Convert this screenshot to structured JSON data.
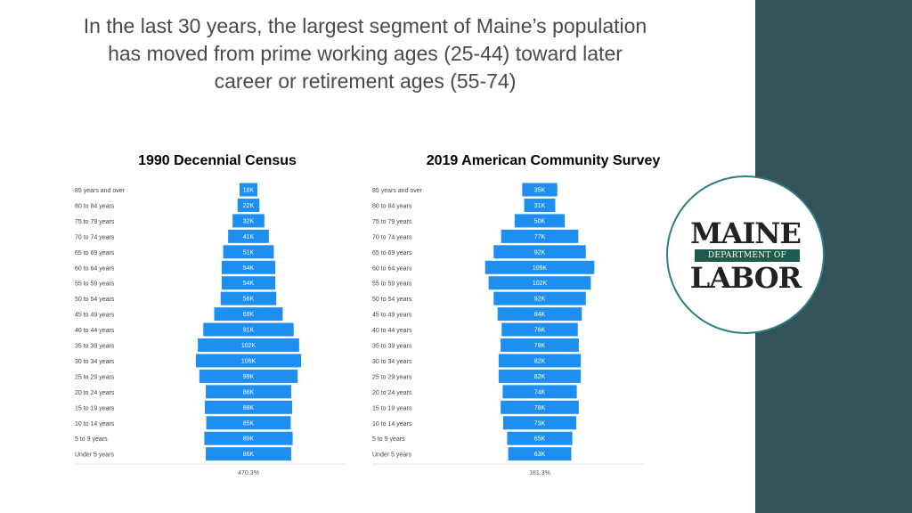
{
  "headline": {
    "line1": "In the last 30 years, the largest segment of Maine’s population",
    "line2": "has moved from prime working ages (25-44) toward later",
    "line3": "career or retirement ages (55-74)"
  },
  "logo": {
    "maine": "MAINE",
    "department": "DEPARTMENT OF",
    "labor": "LABOR"
  },
  "colors": {
    "bar": "#1e8ef0",
    "sidebar": "#33525a",
    "logo_ring": "#2f7d82",
    "logo_band": "#1e5a4d"
  },
  "chart_data": [
    {
      "type": "bar",
      "orientation": "horizontal-centered",
      "title": "1990 Decennial Census",
      "categories": [
        "85 years and over",
        "80 to 84 years",
        "75 to 79 years",
        "70 to 74 years",
        "65 to 69 years",
        "60 to 64 years",
        "55 to 59 years",
        "50 to 54 years",
        "45 to 49 years",
        "40 to 44 years",
        "35 to 39 years",
        "30 to 34 years",
        "25 to 29 years",
        "20 to 24 years",
        "15 to 19 years",
        "10 to 14 years",
        "5 to 9 years",
        "Under 5 years"
      ],
      "values": [
        18,
        22,
        32,
        41,
        51,
        54,
        54,
        56,
        69,
        91,
        102,
        106,
        99,
        86,
        88,
        85,
        89,
        86
      ],
      "value_labels": [
        "18K",
        "22K",
        "32K",
        "41K",
        "51K",
        "54K",
        "54K",
        "56K",
        "69K",
        "91K",
        "102K",
        "106K",
        "99K",
        "86K",
        "88K",
        "85K",
        "89K",
        "86K"
      ],
      "footer": "470.3%"
    },
    {
      "type": "bar",
      "orientation": "horizontal-centered",
      "title": "2019 American Community Survey",
      "categories": [
        "85 years and over",
        "80 to 84 years",
        "75 to 79 years",
        "70 to 74 years",
        "65 to 69 years",
        "60 to 64 years",
        "55 to 59 years",
        "50 to 54 years",
        "45 to 49 years",
        "40 to 44 years",
        "35 to 39 years",
        "30 to 34 years",
        "25 to 29 years",
        "20 to 24 years",
        "15 to 19 years",
        "10 to 14 years",
        "5 to 9 years",
        "Under 5 years"
      ],
      "values": [
        35,
        31,
        50,
        77,
        92,
        109,
        102,
        92,
        84,
        76,
        78,
        82,
        82,
        74,
        78,
        73,
        65,
        63
      ],
      "value_labels": [
        "35K",
        "31K",
        "50K",
        "77K",
        "92K",
        "109K",
        "102K",
        "92K",
        "84K",
        "76K",
        "78K",
        "82K",
        "82K",
        "74K",
        "78K",
        "73K",
        "65K",
        "63K"
      ],
      "footer": "181.3%"
    }
  ]
}
